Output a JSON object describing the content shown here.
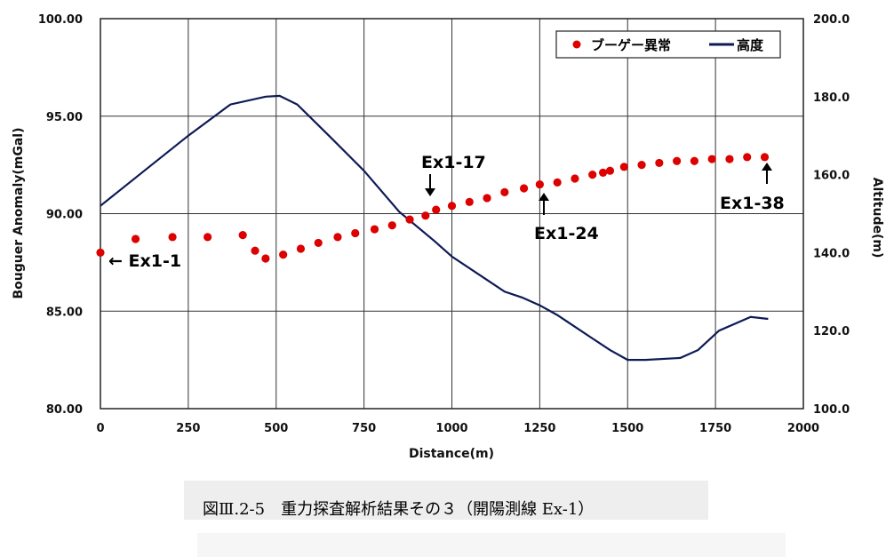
{
  "chart_data": {
    "type": "scatter+line",
    "xlabel": "Distance(m)",
    "ylabel_left": "Bouguer Anomaly(mGal)",
    "ylabel_right": "Altitude(m)",
    "xlim": [
      0,
      2000
    ],
    "ylim_left": [
      80,
      100
    ],
    "ylim_right": [
      100,
      200
    ],
    "x_ticks": [
      "0",
      "250",
      "500",
      "750",
      "1000",
      "1250",
      "1500",
      "1750",
      "2000"
    ],
    "y_left_ticks": [
      "80.00",
      "85.00",
      "90.00",
      "95.00",
      "100.00"
    ],
    "y_right_ticks": [
      "100.0",
      "120.0",
      "140.0",
      "160.0",
      "180.0",
      "200.0"
    ],
    "grid": true,
    "legend_position": "top-right",
    "series": [
      {
        "name": "ブーゲー異常",
        "kind": "scatter",
        "axis": "left",
        "color": "#dd0000",
        "points": [
          [
            0,
            88.0
          ],
          [
            100,
            88.7
          ],
          [
            205,
            88.8
          ],
          [
            305,
            88.8
          ],
          [
            405,
            88.9
          ],
          [
            440,
            88.1
          ],
          [
            470,
            87.7
          ],
          [
            520,
            87.9
          ],
          [
            570,
            88.2
          ],
          [
            620,
            88.5
          ],
          [
            675,
            88.8
          ],
          [
            725,
            89.0
          ],
          [
            780,
            89.2
          ],
          [
            830,
            89.4
          ],
          [
            880,
            89.7
          ],
          [
            925,
            89.9
          ],
          [
            955,
            90.2
          ],
          [
            1000,
            90.4
          ],
          [
            1050,
            90.6
          ],
          [
            1100,
            90.8
          ],
          [
            1150,
            91.1
          ],
          [
            1205,
            91.3
          ],
          [
            1250,
            91.5
          ],
          [
            1300,
            91.6
          ],
          [
            1350,
            91.8
          ],
          [
            1400,
            92.0
          ],
          [
            1430,
            92.1
          ],
          [
            1450,
            92.2
          ],
          [
            1490,
            92.4
          ],
          [
            1540,
            92.5
          ],
          [
            1590,
            92.6
          ],
          [
            1640,
            92.7
          ],
          [
            1690,
            92.7
          ],
          [
            1740,
            92.8
          ],
          [
            1790,
            92.8
          ],
          [
            1840,
            92.9
          ],
          [
            1890,
            92.9
          ]
        ]
      },
      {
        "name": "高度",
        "kind": "line",
        "axis": "right",
        "color": "#0d1a55",
        "points": [
          [
            0,
            152
          ],
          [
            125,
            161
          ],
          [
            250,
            170
          ],
          [
            370,
            178
          ],
          [
            470,
            180
          ],
          [
            510,
            180.2
          ],
          [
            560,
            178
          ],
          [
            650,
            170
          ],
          [
            750,
            161
          ],
          [
            850,
            150.5
          ],
          [
            950,
            143
          ],
          [
            1000,
            139
          ],
          [
            1100,
            133
          ],
          [
            1150,
            130
          ],
          [
            1200,
            128.5
          ],
          [
            1250,
            126.5
          ],
          [
            1300,
            124
          ],
          [
            1400,
            118
          ],
          [
            1450,
            115
          ],
          [
            1500,
            112.5
          ],
          [
            1550,
            112.5
          ],
          [
            1650,
            113
          ],
          [
            1700,
            115
          ],
          [
            1760,
            120
          ],
          [
            1850,
            123.5
          ],
          [
            1900,
            123
          ]
        ]
      }
    ],
    "annotations": [
      {
        "text": "← Ex1-1",
        "x": 0,
        "y": 88.0
      },
      {
        "text": "Ex1-17",
        "x": 955,
        "y": 90.2
      },
      {
        "text": "Ex1-24",
        "x": 1265,
        "y": 91.4
      },
      {
        "text": "Ex1-38",
        "x": 1890,
        "y": 92.9
      }
    ]
  },
  "caption": "図Ⅲ.2-5　重力探査解析結果その３（開陽測線 Ex-1）"
}
